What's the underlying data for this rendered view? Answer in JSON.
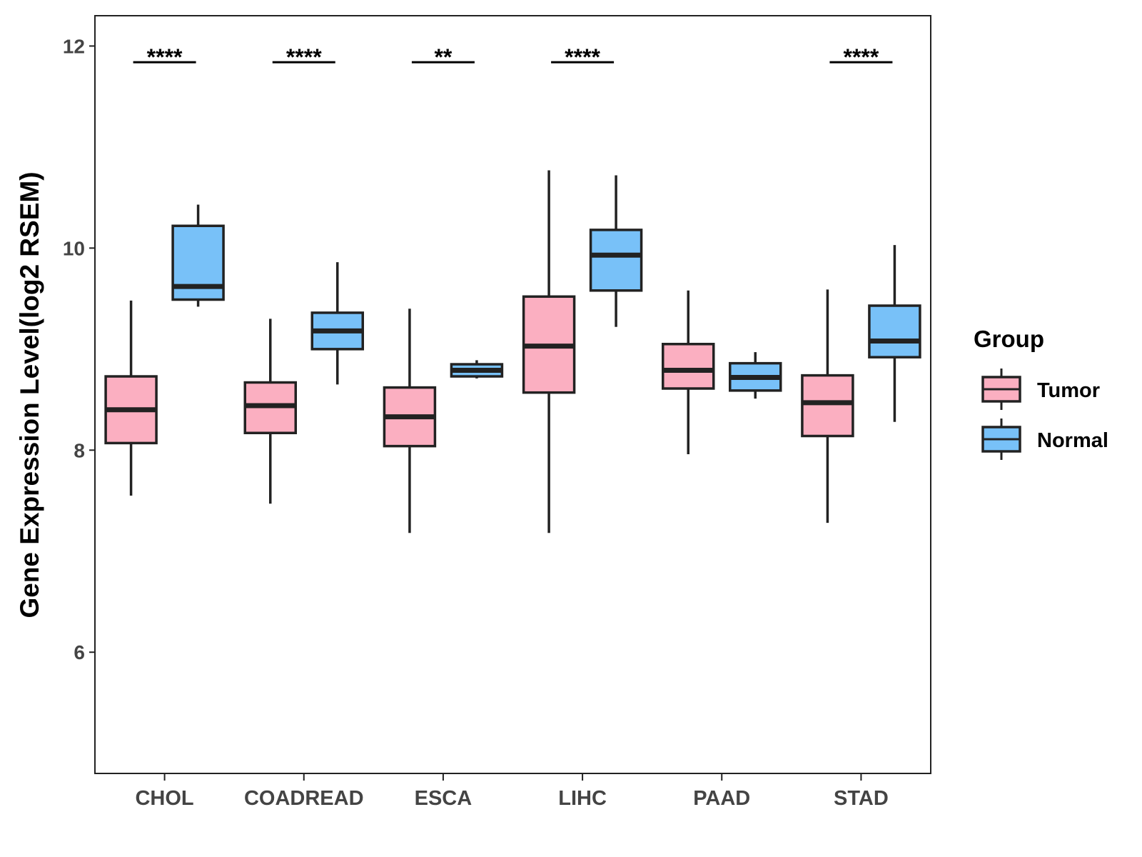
{
  "chart_data": {
    "type": "boxplot",
    "title": "",
    "xlabel": "",
    "ylabel": "Gene Expression Level(log2 RSEM)",
    "ylim": [
      4.8,
      12.3
    ],
    "yticks": [
      6,
      8,
      10,
      12
    ],
    "categories": [
      "CHOL",
      "COADREAD",
      "ESCA",
      "LIHC",
      "PAAD",
      "STAD"
    ],
    "legend": {
      "title": "Group",
      "position": "right",
      "entries": [
        "Tumor",
        "Normal"
      ]
    },
    "colors": {
      "Tumor": "#FBAFC1",
      "Normal": "#78C1F8",
      "outline": "#222222"
    },
    "series": [
      {
        "name": "Tumor",
        "boxes": [
          {
            "whisker_low": 7.55,
            "q1": 8.07,
            "median": 8.4,
            "q3": 8.73,
            "whisker_high": 9.48
          },
          {
            "whisker_low": 7.47,
            "q1": 8.17,
            "median": 8.44,
            "q3": 8.67,
            "whisker_high": 9.3
          },
          {
            "whisker_low": 7.18,
            "q1": 8.04,
            "median": 8.33,
            "q3": 8.62,
            "whisker_high": 9.4
          },
          {
            "whisker_low": 7.18,
            "q1": 8.57,
            "median": 9.03,
            "q3": 9.52,
            "whisker_high": 10.77
          },
          {
            "whisker_low": 7.96,
            "q1": 8.61,
            "median": 8.79,
            "q3": 9.05,
            "whisker_high": 9.58
          },
          {
            "whisker_low": 7.28,
            "q1": 8.14,
            "median": 8.47,
            "q3": 8.74,
            "whisker_high": 9.59
          }
        ]
      },
      {
        "name": "Normal",
        "boxes": [
          {
            "whisker_low": 9.42,
            "q1": 9.49,
            "median": 9.62,
            "q3": 10.22,
            "whisker_high": 10.43
          },
          {
            "whisker_low": 8.65,
            "q1": 9.0,
            "median": 9.18,
            "q3": 9.36,
            "whisker_high": 9.86
          },
          {
            "whisker_low": 8.71,
            "q1": 8.73,
            "median": 8.79,
            "q3": 8.85,
            "whisker_high": 8.89
          },
          {
            "whisker_low": 9.22,
            "q1": 9.58,
            "median": 9.93,
            "q3": 10.18,
            "whisker_high": 10.72
          },
          {
            "whisker_low": 8.51,
            "q1": 8.59,
            "median": 8.72,
            "q3": 8.86,
            "whisker_high": 8.97
          },
          {
            "whisker_low": 8.28,
            "q1": 8.92,
            "median": 9.08,
            "q3": 9.43,
            "whisker_high": 10.03
          }
        ]
      }
    ],
    "significance": [
      {
        "category": "CHOL",
        "label": "****",
        "y": 11.84
      },
      {
        "category": "COADREAD",
        "label": "****",
        "y": 11.84
      },
      {
        "category": "ESCA",
        "label": "**",
        "y": 11.84
      },
      {
        "category": "LIHC",
        "label": "****",
        "y": 11.84
      },
      {
        "category": "STAD",
        "label": "****",
        "y": 11.84
      }
    ]
  }
}
